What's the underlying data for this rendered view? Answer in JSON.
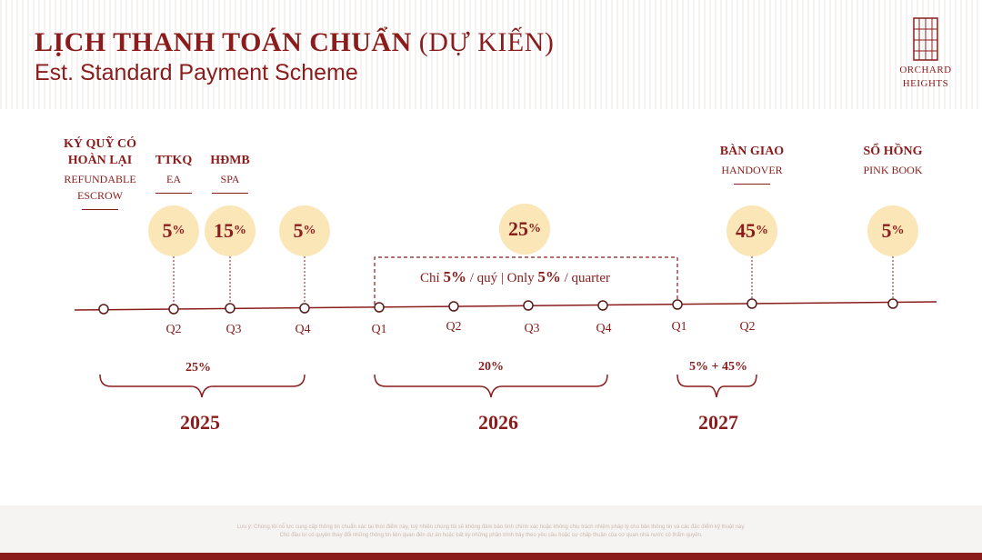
{
  "header": {
    "title_main": "LỊCH THANH TOÁN CHUẨN",
    "title_sub": "(DỰ KIẾN)",
    "subtitle": "Est. Standard Payment Scheme"
  },
  "logo": {
    "line1": "ORCHARD",
    "line2": "HEIGHTS"
  },
  "milestones": [
    {
      "vn": "KÝ QUỸ CÓ",
      "vn2": "HOÀN LẠI",
      "en": "REFUNDABLE",
      "en2": "ESCROW"
    },
    {
      "vn": "TTKQ",
      "en": "EA"
    },
    {
      "vn": "HĐMB",
      "en": "SPA"
    },
    {
      "vn": "BÀN GIAO",
      "en": "HANDOVER"
    },
    {
      "vn": "SỔ HỒNG",
      "en": "PINK BOOK"
    }
  ],
  "bubbles": [
    {
      "num": "5",
      "pct": "%"
    },
    {
      "num": "15",
      "pct": "%"
    },
    {
      "num": "5",
      "pct": "%"
    },
    {
      "num": "25",
      "pct": "%"
    },
    {
      "num": "45",
      "pct": "%"
    },
    {
      "num": "5",
      "pct": "%"
    }
  ],
  "installment_note": {
    "a": "Chỉ ",
    "b": "5%",
    "c": " / quý | Only ",
    "d": "5%",
    "e": " / quarter"
  },
  "quarters": [
    "Q2",
    "Q3",
    "Q4",
    "Q1",
    "Q2",
    "Q3",
    "Q4",
    "Q1",
    "Q2"
  ],
  "groups": [
    {
      "percent": "25%",
      "year": "2025"
    },
    {
      "percent": "20%",
      "year": "2026"
    },
    {
      "percent": "5% + 45%",
      "year": "2027"
    }
  ],
  "disclaimer": {
    "line1": "Lưu ý: Chúng tôi nỗ lực cung cấp thông tin chuẩn xác tại thời điểm này, tuy nhiên chúng tôi sẽ không đảm bảo tính chính xác hoặc không chịu trách nhiệm pháp lý cho bản thông tin và các đặc điểm kỹ thuật này.",
    "line2": "Chủ đầu tư có quyền thay đổi những thông tin liên quan đến dự án hoặc bất kỳ những phần trình bày theo yêu cầu hoặc sự chấp thuận của cơ quan nhà nước có thẩm quyền."
  },
  "colors": {
    "accent": "#8a1c1c",
    "bubble": "#fbe6b8",
    "line": "#8a1c1c"
  }
}
